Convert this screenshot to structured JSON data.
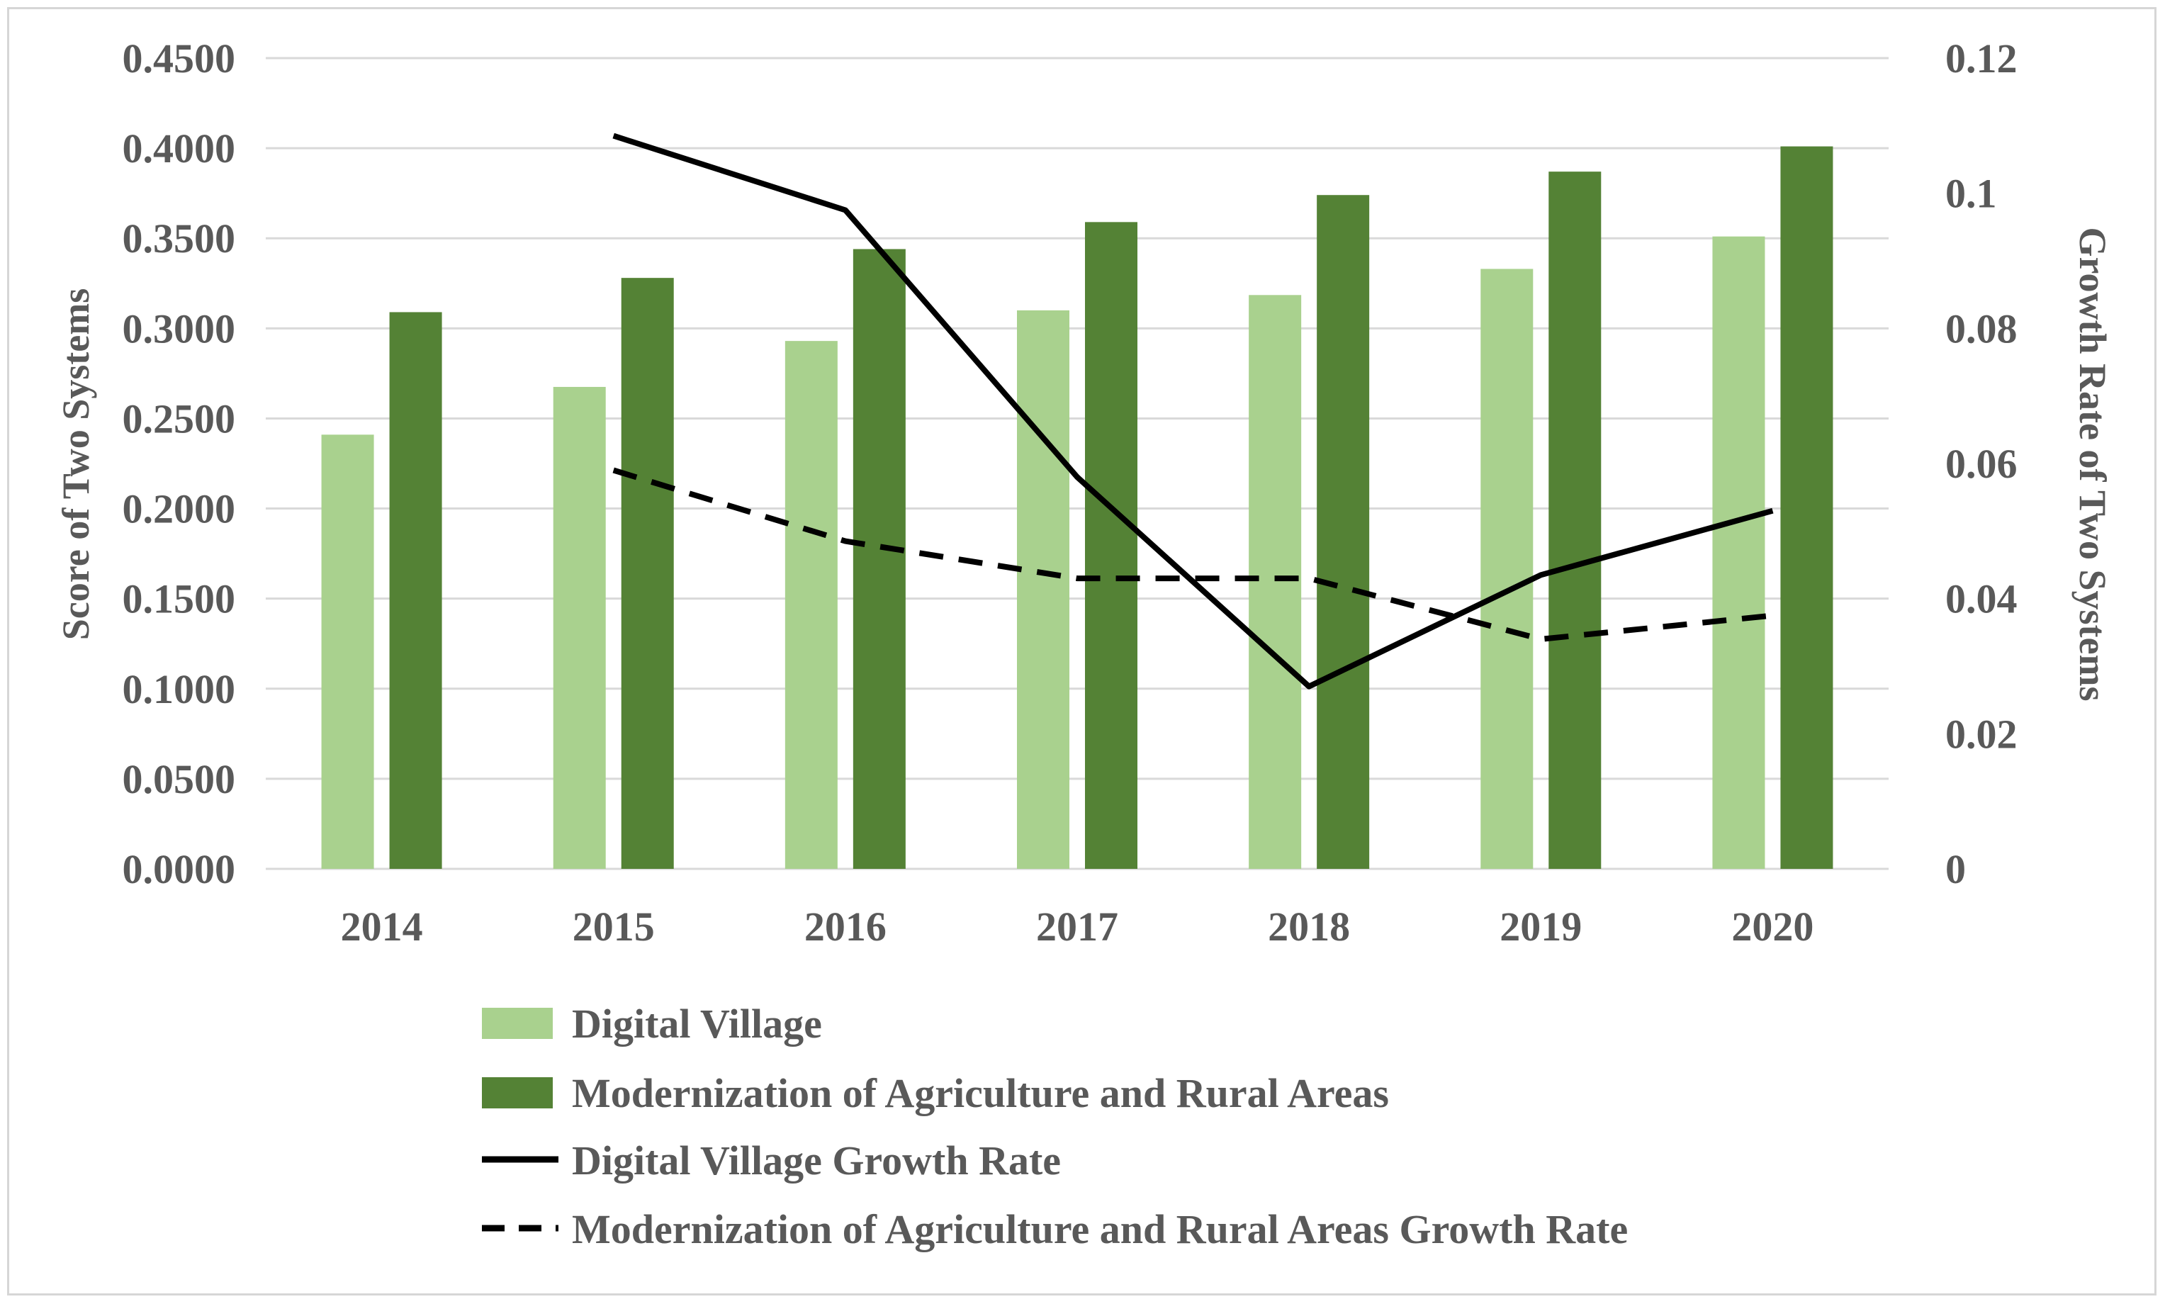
{
  "chart_data": {
    "type": "bar",
    "categories": [
      "2014",
      "2015",
      "2016",
      "2017",
      "2018",
      "2019",
      "2020"
    ],
    "series": [
      {
        "name": "Digital Village",
        "kind": "bar",
        "axis": "left",
        "values": [
          0.241,
          0.2675,
          0.293,
          0.31,
          0.3185,
          0.333,
          0.351
        ]
      },
      {
        "name": "Modernization of Agriculture and Rural Areas",
        "kind": "bar",
        "axis": "left",
        "values": [
          0.309,
          0.328,
          0.344,
          0.359,
          0.374,
          0.387,
          0.401
        ]
      },
      {
        "name": "Digital Village Growth Rate",
        "kind": "line",
        "axis": "right",
        "style": "solid",
        "values": [
          null,
          0.1085,
          0.0975,
          0.058,
          0.027,
          0.0435,
          0.053
        ]
      },
      {
        "name": "Modernization of Agriculture and Rural Areas Growth Rate",
        "kind": "line",
        "axis": "right",
        "style": "dashed",
        "values": [
          null,
          0.059,
          0.0485,
          0.043,
          0.043,
          0.034,
          0.0375
        ]
      }
    ],
    "ylabel": "Score of Two Systems",
    "y2label": "Growth Rate of Two Systems",
    "xlabel": "",
    "ylim": [
      0,
      0.45
    ],
    "y2lim": [
      0,
      0.12
    ],
    "yticks": [
      "0.0000",
      "0.0500",
      "0.1000",
      "0.1500",
      "0.2000",
      "0.2500",
      "0.3000",
      "0.3500",
      "0.4000",
      "0.4500"
    ],
    "y2ticks": [
      "0",
      "0.02",
      "0.04",
      "0.06",
      "0.08",
      "0.1",
      "0.12"
    ],
    "grid": true,
    "legend_position": "bottom",
    "legend": [
      "Digital Village",
      "Modernization of Agriculture and Rural Areas",
      "Digital Village Growth Rate",
      "Modernization of Agriculture and Rural Areas Growth Rate"
    ]
  },
  "colors": {
    "digital_village": "#a9d18e",
    "modernization": "#548235",
    "line": "#000000",
    "grid": "#d9d9d9",
    "text": "#595959"
  }
}
